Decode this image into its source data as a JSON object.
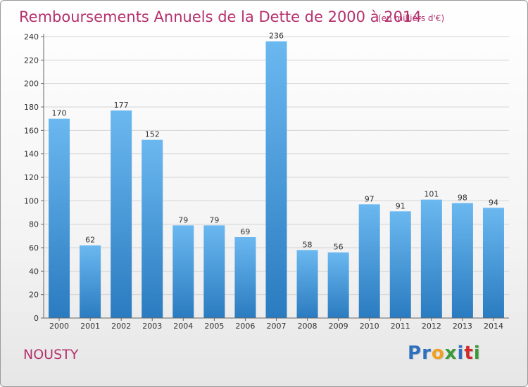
{
  "title": "Remboursements Annuels de la Dette de 2000 à 2014",
  "subtitle": "(en milliers d'€)",
  "commune": "NOUSTY",
  "logo": {
    "letters": [
      {
        "ch": "P",
        "color": "#2e6fbf"
      },
      {
        "ch": "r",
        "color": "#2e6fbf"
      },
      {
        "ch": "o",
        "color": "#f0a020"
      },
      {
        "ch": "x",
        "color": "#3a9a3a"
      },
      {
        "ch": "i",
        "color": "#2e6fbf"
      },
      {
        "ch": "t",
        "color": "#d02a2a"
      },
      {
        "ch": "i",
        "color": "#3a9a3a"
      }
    ]
  },
  "colors": {
    "bar_light": "#6bb8f0",
    "bar_dark": "#2a7bc0",
    "accent": "#b5316d"
  },
  "chart_data": {
    "type": "bar",
    "title": "Remboursements Annuels de la Dette de 2000 à 2014",
    "subtitle": "(en milliers d'€)",
    "xlabel": "",
    "ylabel": "",
    "categories": [
      "2000",
      "2001",
      "2002",
      "2003",
      "2004",
      "2005",
      "2006",
      "2007",
      "2008",
      "2009",
      "2010",
      "2011",
      "2012",
      "2013",
      "2014"
    ],
    "values": [
      170,
      62,
      177,
      152,
      79,
      79,
      69,
      236,
      58,
      56,
      97,
      91,
      101,
      98,
      94
    ],
    "ylim": [
      0,
      240
    ],
    "yticks": [
      0,
      20,
      40,
      60,
      80,
      100,
      120,
      140,
      160,
      180,
      200,
      220,
      240
    ],
    "grid": true,
    "legend": "none"
  }
}
